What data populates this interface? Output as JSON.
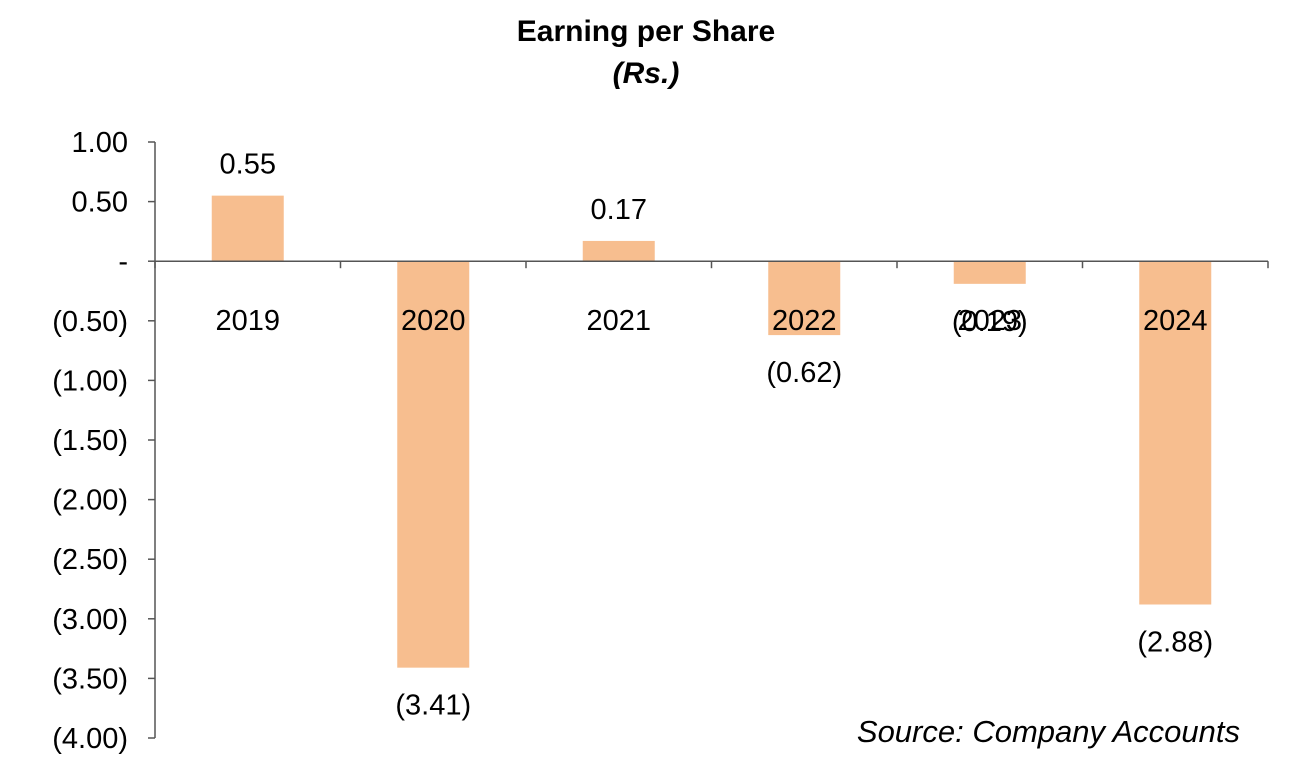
{
  "chart_data": {
    "type": "bar",
    "title": "Earning per Share",
    "subtitle": "(Rs.)",
    "categories": [
      "2019",
      "2020",
      "2021",
      "2022",
      "2023",
      "2024"
    ],
    "values": [
      0.55,
      -3.41,
      0.17,
      -0.62,
      -0.19,
      -2.88
    ],
    "data_labels": [
      "0.55",
      "(3.41)",
      "0.17",
      "(0.62)",
      "(0.19)",
      "(2.88)"
    ],
    "ylim": [
      -4.0,
      1.0
    ],
    "y_ticks": [
      {
        "value": 1.0,
        "label": "1.00"
      },
      {
        "value": 0.5,
        "label": "0.50"
      },
      {
        "value": 0.0,
        "label": "-"
      },
      {
        "value": -0.5,
        "label": "(0.50)"
      },
      {
        "value": -1.0,
        "label": "(1.00)"
      },
      {
        "value": -1.5,
        "label": "(1.50)"
      },
      {
        "value": -2.0,
        "label": "(2.00)"
      },
      {
        "value": -2.5,
        "label": "(2.50)"
      },
      {
        "value": -3.0,
        "label": "(3.00)"
      },
      {
        "value": -3.5,
        "label": "(3.50)"
      },
      {
        "value": -4.0,
        "label": "(4.00)"
      }
    ],
    "bar_color": "#F7BE8F",
    "grid": false,
    "legend": "none",
    "source_note": "Source: Company Accounts"
  }
}
